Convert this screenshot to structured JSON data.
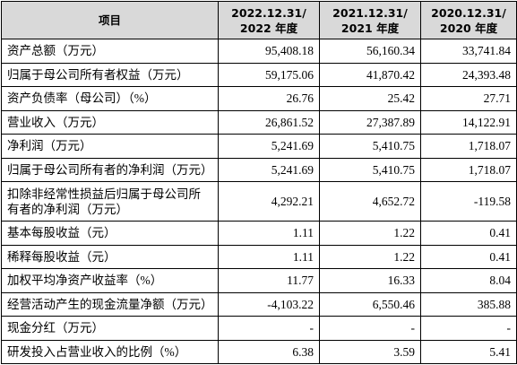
{
  "table": {
    "header": [
      "项目",
      [
        "2022.12.31/",
        "2022 年度"
      ],
      [
        "2021.12.31/",
        "2021 年度"
      ],
      [
        "2020.12.31/",
        "2020 年度"
      ]
    ],
    "rows": [
      [
        "资产总额（万元）",
        "95,408.18",
        "56,160.34",
        "33,741.84"
      ],
      [
        "归属于母公司所有者权益（万元）",
        "59,175.06",
        "41,870.42",
        "24,393.48"
      ],
      [
        "资产负债率（母公司）（%）",
        "26.76",
        "25.42",
        "27.71"
      ],
      [
        "营业收入（万元）",
        "26,861.52",
        "27,387.89",
        "14,122.91"
      ],
      [
        "净利润（万元）",
        "5,241.69",
        "5,410.75",
        "1,718.07"
      ],
      [
        "归属于母公司所有者的净利润（万元）",
        "5,241.69",
        "5,410.75",
        "1,718.07"
      ],
      [
        "扣除非经常性损益后归属于母公司所有者的净利润（万元）",
        "4,292.21",
        "4,652.72",
        "-119.58"
      ],
      [
        "基本每股收益（元）",
        "1.11",
        "1.22",
        "0.41"
      ],
      [
        "稀释每股收益（元）",
        "1.11",
        "1.22",
        "0.41"
      ],
      [
        "加权平均净资产收益率（%）",
        "11.77",
        "16.33",
        "8.04"
      ],
      [
        "经营活动产生的现金流量净额（万元）",
        "-4,103.22",
        "6,550.46",
        "385.88"
      ],
      [
        "现金分红（万元）",
        "-",
        "-",
        "-"
      ],
      [
        "研发投入占营业收入的比例（%）",
        "6.38",
        "3.59",
        "5.41"
      ]
    ]
  }
}
